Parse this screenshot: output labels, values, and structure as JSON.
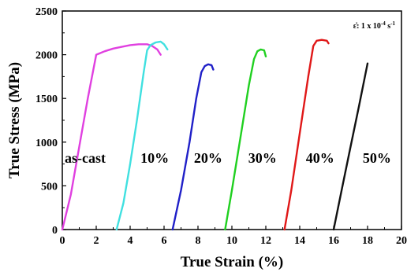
{
  "chart_data": {
    "type": "line",
    "xlabel": "True Strain (%)",
    "ylabel": "True Stress (MPa)",
    "xlim": [
      0,
      20
    ],
    "ylim": [
      0,
      2500
    ],
    "x_ticks": [
      "0",
      "2",
      "4",
      "6",
      "8",
      "10",
      "12",
      "14",
      "16",
      "18",
      "20"
    ],
    "y_ticks": [
      "0",
      "500",
      "1000",
      "1500",
      "2000",
      "2500"
    ],
    "annotation": {
      "prefix": "ε̇: 1 x 10",
      "exponent": "-4",
      "unit": " s",
      "unit_exponent": "-1"
    },
    "grid": false,
    "series": [
      {
        "label": "as-cast",
        "color": "#e040e0",
        "points": [
          [
            0.0,
            0
          ],
          [
            0.5,
            400
          ],
          [
            1.0,
            950
          ],
          [
            1.5,
            1500
          ],
          [
            2.0,
            2000
          ],
          [
            2.5,
            2040
          ],
          [
            3.0,
            2070
          ],
          [
            3.5,
            2090
          ],
          [
            4.0,
            2110
          ],
          [
            4.5,
            2120
          ],
          [
            5.0,
            2120
          ],
          [
            5.3,
            2100
          ],
          [
            5.6,
            2060
          ],
          [
            5.8,
            2000
          ]
        ]
      },
      {
        "label": "10%",
        "color": "#40e0e0",
        "points": [
          [
            3.2,
            0
          ],
          [
            3.6,
            300
          ],
          [
            4.0,
            750
          ],
          [
            4.4,
            1250
          ],
          [
            4.8,
            1800
          ],
          [
            5.0,
            2050
          ],
          [
            5.2,
            2110
          ],
          [
            5.5,
            2140
          ],
          [
            5.8,
            2150
          ],
          [
            6.0,
            2120
          ],
          [
            6.2,
            2060
          ]
        ]
      },
      {
        "label": "20%",
        "color": "#2020c8",
        "points": [
          [
            6.5,
            0
          ],
          [
            7.0,
            450
          ],
          [
            7.5,
            1000
          ],
          [
            7.9,
            1500
          ],
          [
            8.2,
            1800
          ],
          [
            8.4,
            1870
          ],
          [
            8.6,
            1890
          ],
          [
            8.8,
            1880
          ],
          [
            8.9,
            1830
          ]
        ]
      },
      {
        "label": "30%",
        "color": "#20d020",
        "points": [
          [
            9.6,
            0
          ],
          [
            10.0,
            450
          ],
          [
            10.5,
            1050
          ],
          [
            11.0,
            1650
          ],
          [
            11.3,
            1950
          ],
          [
            11.5,
            2040
          ],
          [
            11.7,
            2060
          ],
          [
            11.9,
            2050
          ],
          [
            12.0,
            1980
          ]
        ]
      },
      {
        "label": "40%",
        "color": "#e01818",
        "points": [
          [
            13.1,
            0
          ],
          [
            13.5,
            450
          ],
          [
            14.0,
            1100
          ],
          [
            14.5,
            1750
          ],
          [
            14.8,
            2100
          ],
          [
            15.0,
            2160
          ],
          [
            15.3,
            2170
          ],
          [
            15.6,
            2160
          ],
          [
            15.7,
            2130
          ]
        ]
      },
      {
        "label": "50%",
        "color": "#111111",
        "points": [
          [
            16.0,
            0
          ],
          [
            16.5,
            480
          ],
          [
            17.0,
            950
          ],
          [
            17.5,
            1420
          ],
          [
            18.0,
            1900
          ]
        ]
      }
    ],
    "series_labels": [
      {
        "text": "as-cast",
        "x": 1.35,
        "y": 820
      },
      {
        "text": "10%",
        "x": 5.45,
        "y": 820
      },
      {
        "text": "20%",
        "x": 8.6,
        "y": 820
      },
      {
        "text": "30%",
        "x": 11.8,
        "y": 820
      },
      {
        "text": "40%",
        "x": 15.2,
        "y": 820
      },
      {
        "text": "50%",
        "x": 18.55,
        "y": 820
      }
    ]
  }
}
